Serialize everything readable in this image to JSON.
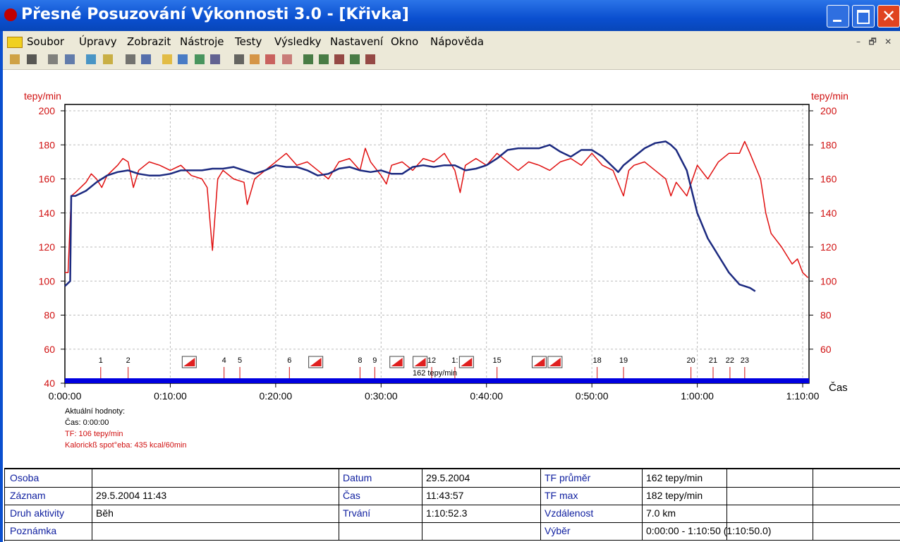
{
  "window": {
    "title": "Přesné Posuzování Výkonnosti 3.0 - [Křivka]"
  },
  "menu": [
    "Soubor",
    "Úpravy",
    "Zobrazit",
    "Nástroje",
    "Testy",
    "Výsledky",
    "Nastavení",
    "Okno",
    "Nápověda"
  ],
  "chart_data": {
    "type": "line",
    "y_label": "tepy/min",
    "y2_label": "tepy/min",
    "x_label": "Čas",
    "xlim": [
      0,
      70.6
    ],
    "xticks": [
      {
        "value": 0,
        "label": "0:00:00"
      },
      {
        "value": 10,
        "label": "0:10:00"
      },
      {
        "value": 20,
        "label": "0:20:00"
      },
      {
        "value": 30,
        "label": "0:30:00"
      },
      {
        "value": 40,
        "label": "0:40:00"
      },
      {
        "value": 50,
        "label": "0:50:00"
      },
      {
        "value": 60,
        "label": "1:00:00"
      },
      {
        "value": 70,
        "label": "1:10:00"
      }
    ],
    "ylim": [
      40,
      200
    ],
    "yticks": [
      40,
      60,
      80,
      100,
      120,
      140,
      160,
      180,
      200
    ],
    "y2lim": [
      40,
      200
    ],
    "y2ticks": [
      60,
      80,
      100,
      120,
      140,
      160,
      180,
      200
    ],
    "grid": true,
    "series": [
      {
        "color": "#e01010",
        "x": [
          0,
          0.3,
          0.6,
          1,
          2,
          2.5,
          3,
          3.5,
          4,
          5,
          5.5,
          6,
          6.5,
          7,
          8,
          9,
          10,
          11,
          12,
          13,
          13.5,
          14,
          14.5,
          15,
          16,
          17,
          17.3,
          18,
          19,
          20,
          21,
          22,
          23,
          24,
          25,
          26,
          27,
          28,
          28.5,
          29,
          30,
          30.5,
          31,
          32,
          33,
          34,
          35,
          36,
          37,
          37.5,
          38,
          39,
          40,
          41,
          42,
          43,
          44,
          45,
          46,
          47,
          48,
          49,
          50,
          51,
          52,
          53,
          53.5,
          54,
          55,
          56,
          57,
          57.5,
          58,
          59,
          60,
          61,
          62,
          63,
          64,
          64.5,
          65,
          66,
          66.5,
          67,
          68,
          68.5,
          69,
          69.5,
          70,
          70.5
        ],
        "values": [
          105,
          105,
          150,
          152,
          158,
          163,
          160,
          155,
          162,
          168,
          172,
          170,
          155,
          165,
          170,
          168,
          165,
          168,
          162,
          160,
          155,
          118,
          160,
          165,
          160,
          158,
          145,
          160,
          165,
          170,
          175,
          168,
          170,
          165,
          160,
          170,
          172,
          165,
          178,
          170,
          162,
          157,
          168,
          170,
          165,
          172,
          170,
          175,
          165,
          152,
          168,
          172,
          168,
          175,
          170,
          165,
          170,
          168,
          165,
          170,
          172,
          168,
          175,
          168,
          165,
          150,
          165,
          168,
          170,
          165,
          160,
          150,
          158,
          150,
          168,
          160,
          170,
          175,
          175,
          182,
          175,
          160,
          140,
          128,
          120,
          115,
          110,
          113,
          105,
          102
        ]
      },
      {
        "color": "#1c2a80",
        "axis": "y2",
        "x": [
          0,
          0.5,
          0.6,
          1,
          2,
          3,
          4,
          5,
          6,
          7,
          8,
          9,
          10,
          11,
          12,
          13,
          14,
          15,
          16,
          17,
          18,
          19,
          20,
          21,
          22,
          23,
          24,
          25,
          26,
          27,
          28,
          29,
          30,
          31,
          32,
          33,
          34,
          35,
          36,
          37,
          38,
          39,
          40,
          41,
          42,
          43,
          44,
          45,
          46,
          47,
          48,
          49,
          50,
          51,
          52,
          52.5,
          53,
          54,
          55,
          56,
          57,
          57.5,
          58,
          59,
          60,
          61,
          62,
          63,
          64,
          65,
          65.5
        ],
        "values": [
          97,
          100,
          150,
          150,
          153,
          158,
          162,
          164,
          165,
          163,
          162,
          162,
          163,
          165,
          165,
          165,
          166,
          166,
          167,
          165,
          163,
          165,
          168,
          167,
          167,
          165,
          162,
          163,
          166,
          167,
          165,
          164,
          165,
          163,
          163,
          167,
          168,
          167,
          168,
          168,
          165,
          166,
          168,
          172,
          177,
          178,
          178,
          178,
          180,
          176,
          173,
          177,
          177,
          173,
          167,
          164,
          168,
          173,
          178,
          181,
          182,
          180,
          177,
          165,
          140,
          125,
          115,
          105,
          98,
          96,
          94
        ]
      }
    ],
    "lap_markers": [
      {
        "label": "1",
        "x": 3.4
      },
      {
        "label": "2",
        "x": 6.0
      },
      {
        "label": "4",
        "x": 15.1
      },
      {
        "label": "5",
        "x": 16.6
      },
      {
        "label": "6",
        "x": 21.3
      },
      {
        "label": "8",
        "x": 28.0
      },
      {
        "label": "9",
        "x": 29.4
      },
      {
        "label": "12",
        "x": 34.8
      },
      {
        "label": "1:",
        "x": 37.0
      },
      {
        "label": "15",
        "x": 41.0
      },
      {
        "label": "18",
        "x": 50.5
      },
      {
        "label": "19",
        "x": 53.0
      },
      {
        "label": "20",
        "x": 59.4
      },
      {
        "label": "21",
        "x": 61.5
      },
      {
        "label": "22",
        "x": 63.1
      },
      {
        "label": "23",
        "x": 64.5
      }
    ],
    "flag_markers": [
      11.8,
      23.8,
      31.5,
      33.7,
      38.1,
      45.0,
      46.5
    ],
    "marker_note": "162 tepy/min"
  },
  "current_values": {
    "heading": "Aktuální hodnoty:",
    "time": "Čas: 0:00:00",
    "hr": "TF: 106 tepy/min",
    "calories": "Kalorickß spot°eba: 435 kcal/60min"
  },
  "info_table": {
    "rows": [
      [
        "Osoba",
        null,
        "Datum",
        "29.5.2004",
        "TF průměr",
        "162 tepy/min"
      ],
      [
        "Záznam",
        "29.5.2004 11:43",
        "Čas",
        "11:43:57",
        "TF max",
        "182 tepy/min"
      ],
      [
        "Druh aktivity",
        "Běh",
        "Trvání",
        "1:10:52.3",
        "Vzdálenost",
        "7.0 km"
      ],
      [
        "Poznámka",
        null,
        null,
        null,
        "Výběr",
        "0:00:00 - 1:10:50 (1:10:50.0)"
      ]
    ]
  }
}
